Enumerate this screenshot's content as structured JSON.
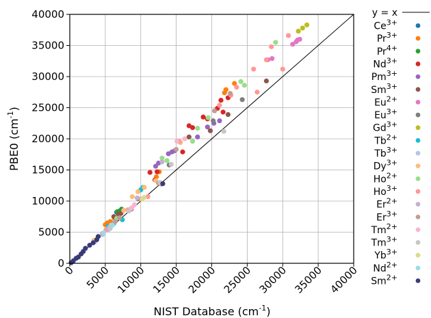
{
  "chart_data": {
    "type": "scatter",
    "xlabel": {
      "base": "NIST Database (cm",
      "sup": "-1",
      "tail": ")"
    },
    "ylabel": {
      "base": "PBE0 (cm",
      "sup": "-1",
      "tail": ")"
    },
    "xlim": [
      0,
      40000
    ],
    "ylim": [
      0,
      40000
    ],
    "xticks": [
      "0",
      "5000",
      "10000",
      "15000",
      "20000",
      "25000",
      "30000",
      "35000",
      "40000"
    ],
    "yticks": [
      "0",
      "5000",
      "10000",
      "15000",
      "20000",
      "25000",
      "30000",
      "35000",
      "40000"
    ],
    "grid": true,
    "legend_position": "right, outside plot",
    "reference_line": {
      "label": "y = x",
      "color": "#000000"
    },
    "series": [
      {
        "base": "Ce",
        "sup": "3+",
        "color": "#1f77b4",
        "points": [
          [
            6600,
            8200
          ],
          [
            7000,
            8400
          ]
        ]
      },
      {
        "base": "Pr",
        "sup": "3+",
        "color": "#ff7f0e",
        "points": [
          [
            5000,
            6200
          ],
          [
            5300,
            6500
          ],
          [
            5700,
            6700
          ],
          [
            6300,
            7200
          ],
          [
            6800,
            7600
          ],
          [
            12200,
            13900
          ],
          [
            12600,
            14700
          ],
          [
            21800,
            27400
          ],
          [
            22000,
            27900
          ],
          [
            23200,
            28900
          ]
        ]
      },
      {
        "base": "Pr",
        "sup": "4+",
        "color": "#2ca02c",
        "points": [
          [
            6700,
            8300
          ],
          [
            7300,
            8700
          ]
        ]
      },
      {
        "base": "Nd",
        "sup": "3+",
        "color": "#d62728",
        "points": [
          [
            11300,
            14600
          ],
          [
            12300,
            14700
          ],
          [
            15900,
            17900
          ],
          [
            16800,
            22100
          ],
          [
            17300,
            21800
          ],
          [
            18800,
            23500
          ],
          [
            19400,
            23200
          ],
          [
            20800,
            24900
          ],
          [
            21300,
            26200
          ],
          [
            21600,
            24300
          ],
          [
            22300,
            26600
          ],
          [
            12000,
            13400
          ]
        ]
      },
      {
        "base": "Pm",
        "sup": "3+",
        "color": "#9467bd",
        "points": [
          [
            12100,
            15600
          ],
          [
            12500,
            16100
          ],
          [
            13900,
            17600
          ],
          [
            14400,
            17900
          ],
          [
            14800,
            18100
          ],
          [
            18000,
            20300
          ],
          [
            19400,
            21900
          ],
          [
            20300,
            22500
          ],
          [
            21100,
            22900
          ]
        ]
      },
      {
        "base": "Sm",
        "sup": "3+",
        "color": "#8c564b",
        "points": [
          [
            6200,
            7500
          ],
          [
            7200,
            8000
          ],
          [
            9600,
            10400
          ],
          [
            16800,
            20300
          ],
          [
            19800,
            21300
          ],
          [
            22300,
            23900
          ],
          [
            27700,
            29300
          ],
          [
            6900,
            7900
          ]
        ]
      },
      {
        "base": "Eu",
        "sup": "2+",
        "color": "#e377c2",
        "points": [
          [
            27900,
            32700
          ],
          [
            28500,
            32900
          ],
          [
            31400,
            35200
          ],
          [
            31900,
            35600
          ],
          [
            32100,
            35900
          ],
          [
            32400,
            36000
          ],
          [
            8700,
            8700
          ]
        ]
      },
      {
        "base": "Eu",
        "sup": "3+",
        "color": "#7f7f7f",
        "points": [
          [
            14000,
            15800
          ],
          [
            20200,
            22900
          ],
          [
            24300,
            26300
          ]
        ]
      },
      {
        "base": "Gd",
        "sup": "3+",
        "color": "#bcbd22",
        "points": [
          [
            32200,
            37300
          ],
          [
            32800,
            37800
          ],
          [
            33400,
            38300
          ]
        ]
      },
      {
        "base": "Tb",
        "sup": "2+",
        "color": "#17becf",
        "points": [
          [
            5400,
            6000
          ],
          [
            6200,
            6400
          ],
          [
            7400,
            7000
          ],
          [
            10000,
            11800
          ],
          [
            10300,
            12200
          ]
        ]
      },
      {
        "base": "Tb",
        "sup": "3+",
        "color": "#aec7e8",
        "points": [
          [
            3600,
            3500
          ],
          [
            4600,
            4600
          ],
          [
            5400,
            5400
          ],
          [
            6000,
            6200
          ]
        ]
      },
      {
        "base": "Dy",
        "sup": "3+",
        "color": "#ffbb78",
        "points": [
          [
            3400,
            3700
          ],
          [
            5800,
            6100
          ],
          [
            7600,
            8500
          ],
          [
            8800,
            10700
          ],
          [
            9600,
            11500
          ],
          [
            10500,
            12200
          ],
          [
            12100,
            13300
          ],
          [
            15600,
            19400
          ]
        ]
      },
      {
        "base": "Ho",
        "sup": "2+",
        "color": "#98df8a",
        "points": [
          [
            6600,
            7200
          ],
          [
            13700,
            16500
          ],
          [
            13000,
            16900
          ],
          [
            17300,
            19600
          ],
          [
            18000,
            21700
          ],
          [
            19500,
            23400
          ],
          [
            24100,
            29200
          ],
          [
            24600,
            28600
          ],
          [
            29000,
            35500
          ]
        ]
      },
      {
        "base": "Ho",
        "sup": "3+",
        "color": "#ff9896",
        "points": [
          [
            5100,
            5400
          ],
          [
            8200,
            8600
          ],
          [
            11000,
            10700
          ],
          [
            12900,
            12700
          ],
          [
            15400,
            19600
          ],
          [
            21100,
            25400
          ],
          [
            23500,
            28300
          ],
          [
            25900,
            31200
          ],
          [
            26400,
            27500
          ],
          [
            27700,
            32700
          ],
          [
            28400,
            34800
          ],
          [
            30000,
            31200
          ],
          [
            30800,
            36600
          ],
          [
            22700,
            27000
          ]
        ]
      },
      {
        "base": "Er",
        "sup": "2+",
        "color": "#c5b0d5",
        "points": [
          [
            4600,
            4800
          ],
          [
            5500,
            5700
          ],
          [
            9500,
            10500
          ],
          [
            13000,
            16300
          ]
        ]
      },
      {
        "base": "Er",
        "sup": "3+",
        "color": "#c49c94",
        "points": [
          [
            6400,
            6700
          ],
          [
            10100,
            10300
          ],
          [
            12500,
            12900
          ],
          [
            15000,
            18300
          ],
          [
            20400,
            24500
          ],
          [
            22600,
            27300
          ],
          [
            7000,
            7300
          ]
        ]
      },
      {
        "base": "Tm",
        "sup": "2+",
        "color": "#f7b6d2",
        "points": [
          [
            8700,
            8900
          ],
          [
            9100,
            9400
          ],
          [
            15100,
            19600
          ],
          [
            16200,
            20000
          ]
        ]
      },
      {
        "base": "Tm",
        "sup": "3+",
        "color": "#c7c7c7",
        "points": [
          [
            5700,
            5600
          ],
          [
            8300,
            8400
          ],
          [
            12700,
            13000
          ],
          [
            14300,
            15900
          ],
          [
            21700,
            21200
          ]
        ]
      },
      {
        "base": "Yb",
        "sup": "3+",
        "color": "#dbdb8d",
        "points": [
          [
            10200,
            10300
          ],
          [
            10500,
            10600
          ]
        ]
      },
      {
        "base": "Nd",
        "sup": "2+",
        "color": "#9edae5",
        "points": [
          [
            4800,
            4900
          ],
          [
            6000,
            6100
          ]
        ]
      },
      {
        "base": "Sm",
        "sup": "2+",
        "color": "#393b79",
        "points": [
          [
            200,
            100
          ],
          [
            500,
            400
          ],
          [
            900,
            800
          ],
          [
            1200,
            1000
          ],
          [
            1600,
            1500
          ],
          [
            1900,
            1900
          ],
          [
            2200,
            2400
          ],
          [
            2800,
            2900
          ],
          [
            3300,
            3300
          ],
          [
            3800,
            3800
          ],
          [
            4000,
            4300
          ],
          [
            13100,
            12800
          ]
        ]
      }
    ]
  }
}
